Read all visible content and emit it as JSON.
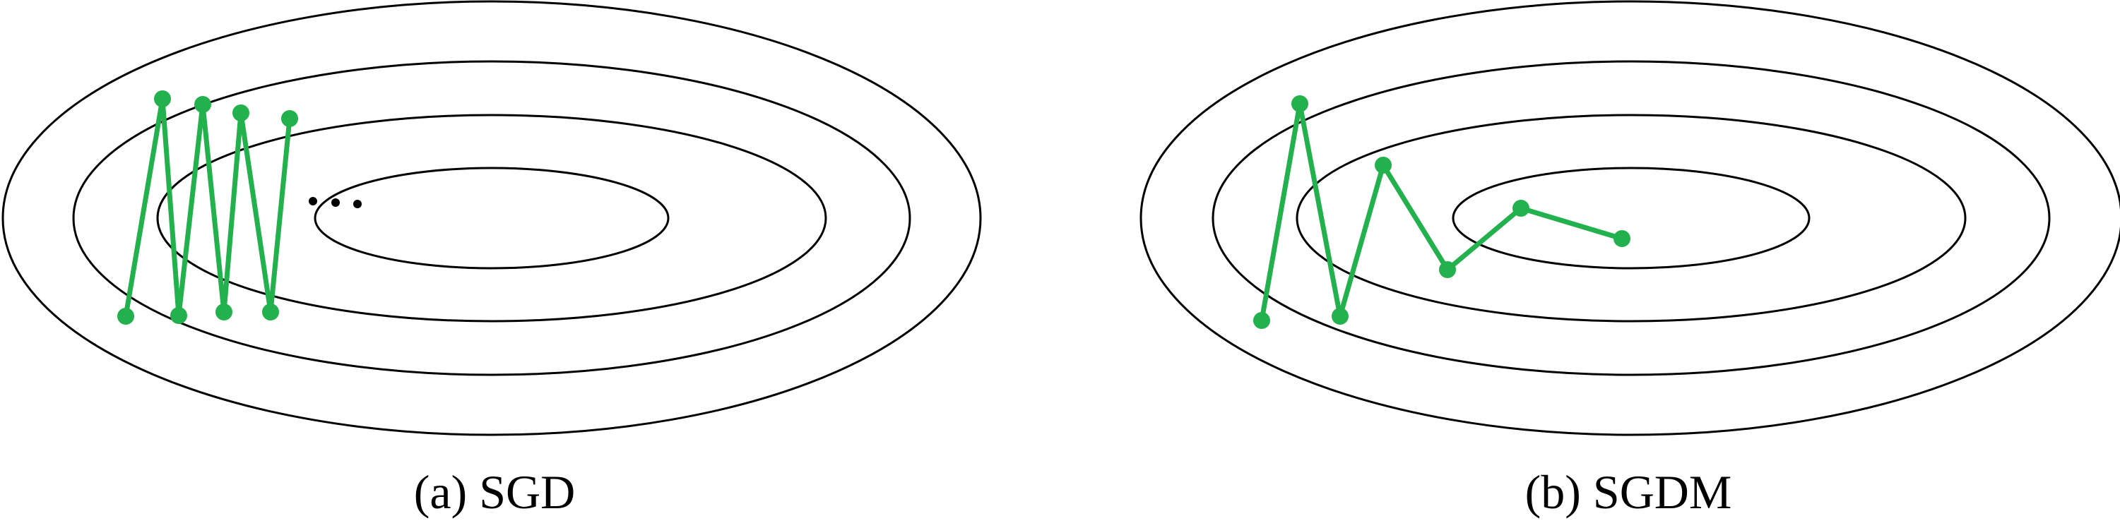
{
  "colors": {
    "path": "#22b14c",
    "contour": "#000000",
    "background": "#ffffff"
  },
  "panels": [
    {
      "id": "sgd",
      "caption": "(a) SGD",
      "ellipsis": true
    },
    {
      "id": "sgdm",
      "caption": "(b) SGDM",
      "ellipsis": false
    }
  ]
}
